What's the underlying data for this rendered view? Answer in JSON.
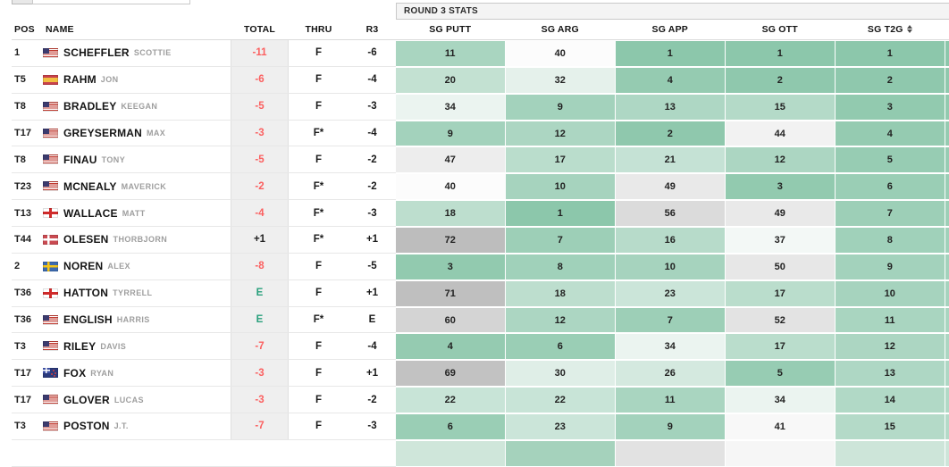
{
  "banner": {
    "label": "ROUND 3 STATS"
  },
  "columns": {
    "pos": "POS",
    "name": "NAME",
    "total": "TOTAL",
    "thru": "THRU",
    "r3": "R3",
    "sg_putt": "SG PUTT",
    "sg_arg": "SG ARG",
    "sg_app": "SG APP",
    "sg_ott": "SG OTT",
    "sg_t2g": "SG T2G"
  },
  "sort": {
    "active_column": "sg_t2g"
  },
  "colors": {
    "total_negative": "#fb5f5f",
    "total_even": "#2aa07c",
    "total_positive": "#222222",
    "heat_green": "#8cc7ab",
    "heat_white": "#fcfcfc",
    "heat_gray": "#b7b7b7",
    "total_column_bg": "#efefef"
  },
  "rows": [
    {
      "pos": "1",
      "country": "us",
      "last_name": "SCHEFFLER",
      "first_name": "SCOTTIE",
      "total": "-11",
      "thru": "F",
      "r3": "-6",
      "stats": [
        11,
        40,
        1,
        1,
        1
      ]
    },
    {
      "pos": "T5",
      "country": "es",
      "last_name": "RAHM",
      "first_name": "JON",
      "total": "-6",
      "thru": "F",
      "r3": "-4",
      "stats": [
        20,
        32,
        4,
        2,
        2
      ]
    },
    {
      "pos": "T8",
      "country": "us",
      "last_name": "BRADLEY",
      "first_name": "KEEGAN",
      "total": "-5",
      "thru": "F",
      "r3": "-3",
      "stats": [
        34,
        9,
        13,
        15,
        3
      ]
    },
    {
      "pos": "T17",
      "country": "us",
      "last_name": "GREYSERMAN",
      "first_name": "MAX",
      "total": "-3",
      "thru": "F*",
      "r3": "-4",
      "stats": [
        9,
        12,
        2,
        44,
        4
      ]
    },
    {
      "pos": "T8",
      "country": "us",
      "last_name": "FINAU",
      "first_name": "TONY",
      "total": "-5",
      "thru": "F",
      "r3": "-2",
      "stats": [
        47,
        17,
        21,
        12,
        5
      ]
    },
    {
      "pos": "T23",
      "country": "us",
      "last_name": "MCNEALY",
      "first_name": "MAVERICK",
      "total": "-2",
      "thru": "F*",
      "r3": "-2",
      "stats": [
        40,
        10,
        49,
        3,
        6
      ]
    },
    {
      "pos": "T13",
      "country": "eng",
      "last_name": "WALLACE",
      "first_name": "MATT",
      "total": "-4",
      "thru": "F*",
      "r3": "-3",
      "stats": [
        18,
        1,
        56,
        49,
        7
      ]
    },
    {
      "pos": "T44",
      "country": "dk",
      "last_name": "OLESEN",
      "first_name": "THORBJORN",
      "total": "+1",
      "thru": "F*",
      "r3": "+1",
      "stats": [
        72,
        7,
        16,
        37,
        8
      ]
    },
    {
      "pos": "2",
      "country": "se",
      "last_name": "NOREN",
      "first_name": "ALEX",
      "total": "-8",
      "thru": "F",
      "r3": "-5",
      "stats": [
        3,
        8,
        10,
        50,
        9
      ]
    },
    {
      "pos": "T36",
      "country": "eng",
      "last_name": "HATTON",
      "first_name": "TYRRELL",
      "total": "E",
      "thru": "F",
      "r3": "+1",
      "stats": [
        71,
        18,
        23,
        17,
        10
      ]
    },
    {
      "pos": "T36",
      "country": "us",
      "last_name": "ENGLISH",
      "first_name": "HARRIS",
      "total": "E",
      "thru": "F*",
      "r3": "E",
      "stats": [
        60,
        12,
        7,
        52,
        11
      ]
    },
    {
      "pos": "T3",
      "country": "us",
      "last_name": "RILEY",
      "first_name": "DAVIS",
      "total": "-7",
      "thru": "F",
      "r3": "-4",
      "stats": [
        4,
        6,
        34,
        17,
        12
      ]
    },
    {
      "pos": "T17",
      "country": "nz",
      "last_name": "FOX",
      "first_name": "RYAN",
      "total": "-3",
      "thru": "F",
      "r3": "+1",
      "stats": [
        69,
        30,
        26,
        5,
        13
      ]
    },
    {
      "pos": "T17",
      "country": "us",
      "last_name": "GLOVER",
      "first_name": "LUCAS",
      "total": "-3",
      "thru": "F",
      "r3": "-2",
      "stats": [
        22,
        22,
        11,
        34,
        14
      ]
    },
    {
      "pos": "T3",
      "country": "us",
      "last_name": "POSTON",
      "first_name": "J.T.",
      "total": "-7",
      "thru": "F",
      "r3": "-3",
      "stats": [
        6,
        23,
        9,
        41,
        15
      ]
    }
  ],
  "partial_next_row": {
    "cell_colors": [
      "#cfe6da",
      "#a5d2bc",
      "#e2e2e2",
      "#f6f6f6",
      "#cde5d9"
    ]
  }
}
